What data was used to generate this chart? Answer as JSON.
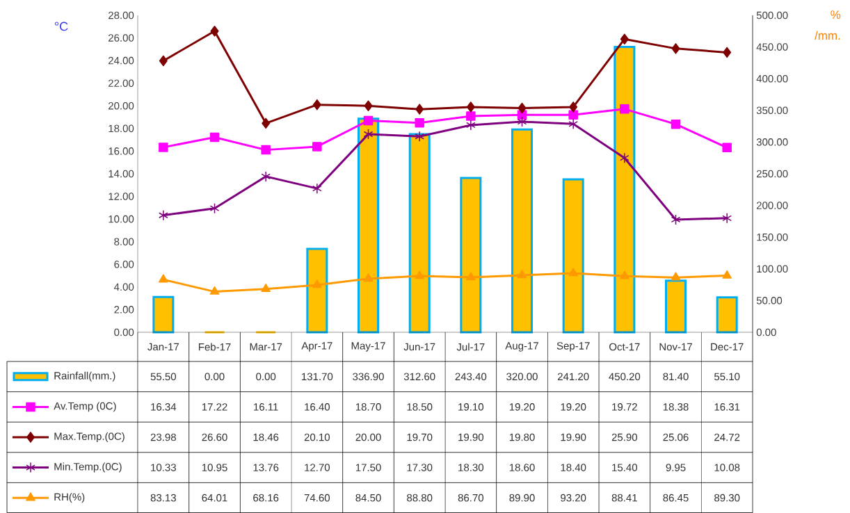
{
  "chart_data": {
    "type": "line",
    "ylabel": "°C",
    "y2label": "% /mm.",
    "categories": [
      "Jan-17",
      "Feb-17",
      "Mar-17",
      "Apr-17",
      "May-17",
      "Jun-17",
      "Jul-17",
      "Aug-17",
      "Sep-17",
      "Oct-17",
      "Nov-17",
      "Dec-17"
    ],
    "series": [
      {
        "name": "Rainfall(mm.)",
        "type": "bar",
        "axis": "y2",
        "color": "#ffc000",
        "values": [
          55.5,
          0.0,
          0.0,
          131.7,
          336.9,
          312.6,
          243.4,
          320.0,
          241.2,
          450.2,
          81.4,
          55.1
        ],
        "value_labels": [
          "55.50",
          "0.00",
          "0.00",
          "131.70",
          "336.90",
          "312.60",
          "243.40",
          "320.00",
          "241.20",
          "450.20",
          "81.40",
          "55.10"
        ]
      },
      {
        "name": "Av.Temp (0C)",
        "marker": "square",
        "color": "#ff00ff",
        "values": [
          16.34,
          17.22,
          16.11,
          16.4,
          18.7,
          18.5,
          19.1,
          19.2,
          19.2,
          19.72,
          18.38,
          16.31
        ],
        "value_labels": [
          "16.34",
          "17.22",
          "16.11",
          "16.40",
          "18.70",
          "18.50",
          "19.10",
          "19.20",
          "19.20",
          "19.72",
          "18.38",
          "16.31"
        ]
      },
      {
        "name": "Max.Temp.(0C)",
        "marker": "diamond",
        "color": "#7f0000",
        "values": [
          23.98,
          26.6,
          18.46,
          20.1,
          20.0,
          19.7,
          19.9,
          19.8,
          19.9,
          25.9,
          25.06,
          24.72
        ],
        "value_labels": [
          "23.98",
          "26.60",
          "18.46",
          "20.10",
          "20.00",
          "19.70",
          "19.90",
          "19.80",
          "19.90",
          "25.90",
          "25.06",
          "24.72"
        ]
      },
      {
        "name": "Min.Temp.(0C)",
        "marker": "cross",
        "color": "#7f007f",
        "values": [
          10.33,
          10.95,
          13.76,
          12.7,
          17.5,
          17.3,
          18.3,
          18.6,
          18.4,
          15.4,
          9.95,
          10.08
        ],
        "value_labels": [
          "10.33",
          "10.95",
          "13.76",
          "12.70",
          "17.50",
          "17.30",
          "18.30",
          "18.60",
          "18.40",
          "15.40",
          "9.95",
          "10.08"
        ]
      },
      {
        "name": "RH(%)",
        "axis": "y2",
        "marker": "triangle",
        "color": "#ff9900",
        "values": [
          83.13,
          64.01,
          68.16,
          74.6,
          84.5,
          88.8,
          86.7,
          89.9,
          93.2,
          88.41,
          86.45,
          89.3
        ],
        "value_labels": [
          "83.13",
          "64.01",
          "68.16",
          "74.60",
          "84.50",
          "88.80",
          "86.70",
          "89.90",
          "93.20",
          "88.41",
          "86.45",
          "89.30"
        ]
      }
    ],
    "ylim": [
      0,
      28
    ],
    "yticks": [
      {
        "value": 0,
        "label": "0.00"
      },
      {
        "value": 2,
        "label": "2.00"
      },
      {
        "value": 4,
        "label": "4.00"
      },
      {
        "value": 6,
        "label": "6.00"
      },
      {
        "value": 8,
        "label": "8.00"
      },
      {
        "value": 10,
        "label": "10.00"
      },
      {
        "value": 12,
        "label": "12.00"
      },
      {
        "value": 14,
        "label": "14.00"
      },
      {
        "value": 16,
        "label": "16.00"
      },
      {
        "value": 18,
        "label": "18.00"
      },
      {
        "value": 20,
        "label": "20.00"
      },
      {
        "value": 22,
        "label": "22.00"
      },
      {
        "value": 24,
        "label": "24.00"
      },
      {
        "value": 26,
        "label": "26.00"
      },
      {
        "value": 28,
        "label": "28.00"
      }
    ],
    "y2lim": [
      0,
      500
    ],
    "y2ticks": [
      {
        "value": 0,
        "label": "0.00"
      },
      {
        "value": 50,
        "label": "50.00"
      },
      {
        "value": 100,
        "label": "100.00"
      },
      {
        "value": 150,
        "label": "150.00"
      },
      {
        "value": 200,
        "label": "200.00"
      },
      {
        "value": 250,
        "label": "250.00"
      },
      {
        "value": 300,
        "label": "300.00"
      },
      {
        "value": 350,
        "label": "350.00"
      },
      {
        "value": 400,
        "label": "400.00"
      },
      {
        "value": 450,
        "label": "450.00"
      },
      {
        "value": 500,
        "label": "500.00"
      }
    ],
    "legend": "bottom"
  }
}
